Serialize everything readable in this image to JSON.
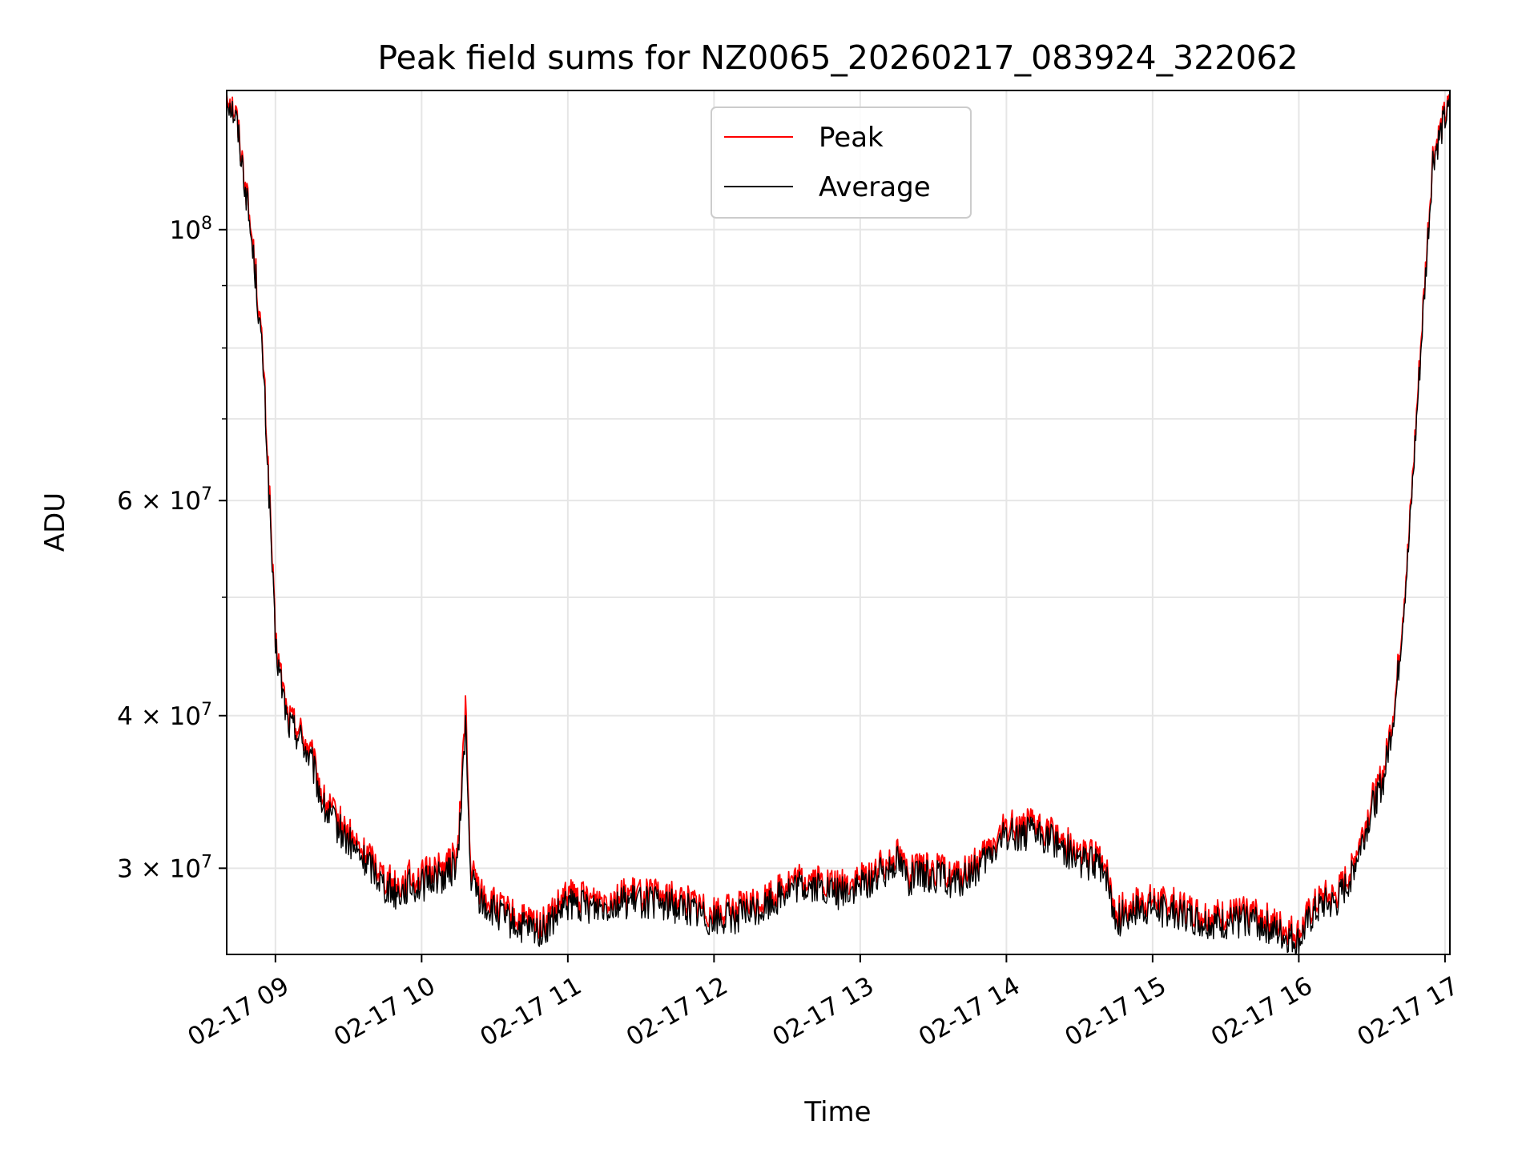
{
  "chart_data": {
    "type": "line",
    "title": "Peak field sums for NZ0065_20260217_083924_322062",
    "xlabel": "Time",
    "ylabel": "ADU",
    "yscale": "log",
    "ylim": [
      25500000,
      130000000
    ],
    "xlim": [
      "2026-02-17 08:40",
      "2026-02-17 17:02"
    ],
    "x_ticks": [
      {
        "value": "2026-02-17 09:00",
        "label": "02-17 09"
      },
      {
        "value": "2026-02-17 10:00",
        "label": "02-17 10"
      },
      {
        "value": "2026-02-17 11:00",
        "label": "02-17 11"
      },
      {
        "value": "2026-02-17 12:00",
        "label": "02-17 12"
      },
      {
        "value": "2026-02-17 13:00",
        "label": "02-17 13"
      },
      {
        "value": "2026-02-17 14:00",
        "label": "02-17 14"
      },
      {
        "value": "2026-02-17 15:00",
        "label": "02-17 15"
      },
      {
        "value": "2026-02-17 16:00",
        "label": "02-17 16"
      },
      {
        "value": "2026-02-17 17:00",
        "label": "02-17 17"
      }
    ],
    "y_ticks": [
      {
        "value": 30000000,
        "mantissa": "3",
        "exponent": "7"
      },
      {
        "value": 40000000,
        "mantissa": "4",
        "exponent": "7"
      },
      {
        "value": 60000000,
        "mantissa": "6",
        "exponent": "7"
      },
      {
        "value": 100000000,
        "mantissa": "",
        "exponent": "8"
      }
    ],
    "y_minor_ticks": [
      50000000,
      70000000,
      80000000,
      90000000
    ],
    "grid": true,
    "legend_position": "top-center",
    "series": [
      {
        "name": "Peak",
        "color": "#ff0000",
        "x": [
          "2026-02-17 08:40",
          "2026-02-17 08:44",
          "2026-02-17 08:48",
          "2026-02-17 08:52",
          "2026-02-17 08:55",
          "2026-02-17 08:58",
          "2026-02-17 09:00",
          "2026-02-17 09:05",
          "2026-02-17 09:10",
          "2026-02-17 09:15",
          "2026-02-17 09:20",
          "2026-02-17 09:25",
          "2026-02-17 09:30",
          "2026-02-17 09:35",
          "2026-02-17 09:40",
          "2026-02-17 09:45",
          "2026-02-17 09:50",
          "2026-02-17 09:55",
          "2026-02-17 10:00",
          "2026-02-17 10:05",
          "2026-02-17 10:10",
          "2026-02-17 10:15",
          "2026-02-17 10:18",
          "2026-02-17 10:20",
          "2026-02-17 10:25",
          "2026-02-17 10:30",
          "2026-02-17 10:40",
          "2026-02-17 10:50",
          "2026-02-17 11:00",
          "2026-02-17 11:10",
          "2026-02-17 11:20",
          "2026-02-17 11:30",
          "2026-02-17 11:40",
          "2026-02-17 11:50",
          "2026-02-17 12:00",
          "2026-02-17 12:10",
          "2026-02-17 12:20",
          "2026-02-17 12:30",
          "2026-02-17 12:40",
          "2026-02-17 12:50",
          "2026-02-17 13:00",
          "2026-02-17 13:10",
          "2026-02-17 13:15",
          "2026-02-17 13:20",
          "2026-02-17 13:30",
          "2026-02-17 13:40",
          "2026-02-17 13:50",
          "2026-02-17 14:00",
          "2026-02-17 14:10",
          "2026-02-17 14:20",
          "2026-02-17 14:30",
          "2026-02-17 14:40",
          "2026-02-17 14:45",
          "2026-02-17 14:50",
          "2026-02-17 15:00",
          "2026-02-17 15:10",
          "2026-02-17 15:20",
          "2026-02-17 15:30",
          "2026-02-17 15:40",
          "2026-02-17 15:50",
          "2026-02-17 16:00",
          "2026-02-17 16:05",
          "2026-02-17 16:10",
          "2026-02-17 16:15",
          "2026-02-17 16:20",
          "2026-02-17 16:25",
          "2026-02-17 16:30",
          "2026-02-17 16:35",
          "2026-02-17 16:40",
          "2026-02-17 16:45",
          "2026-02-17 16:50",
          "2026-02-17 16:55",
          "2026-02-17 17:00",
          "2026-02-17 17:02"
        ],
        "values": [
          130000000,
          124000000,
          108000000,
          92000000,
          78000000,
          58000000,
          46000000,
          40000000,
          39000000,
          37000000,
          34000000,
          33000000,
          32000000,
          31000000,
          30500000,
          29500000,
          29000000,
          29500000,
          29500000,
          30000000,
          30000000,
          31000000,
          41000000,
          30000000,
          28500000,
          28000000,
          27200000,
          27000000,
          28500000,
          28300000,
          28500000,
          28600000,
          28400000,
          28200000,
          27600000,
          27800000,
          28200000,
          29200000,
          29400000,
          29000000,
          29300000,
          30200000,
          31000000,
          29800000,
          30000000,
          29500000,
          30500000,
          32500000,
          32500000,
          32000000,
          30800000,
          30500000,
          27500000,
          28000000,
          28200000,
          28000000,
          27500000,
          27400000,
          27700000,
          27000000,
          26500000,
          27700000,
          28400000,
          28400000,
          29500000,
          31500000,
          34000000,
          36000000,
          42000000,
          55000000,
          80000000,
          115000000,
          124000000,
          126000000
        ]
      },
      {
        "name": "Average",
        "color": "#000000",
        "x": [
          "2026-02-17 08:40",
          "2026-02-17 08:44",
          "2026-02-17 08:48",
          "2026-02-17 08:52",
          "2026-02-17 08:55",
          "2026-02-17 08:58",
          "2026-02-17 09:00",
          "2026-02-17 09:05",
          "2026-02-17 09:10",
          "2026-02-17 09:15",
          "2026-02-17 09:20",
          "2026-02-17 09:25",
          "2026-02-17 09:30",
          "2026-02-17 09:35",
          "2026-02-17 09:40",
          "2026-02-17 09:45",
          "2026-02-17 09:50",
          "2026-02-17 09:55",
          "2026-02-17 10:00",
          "2026-02-17 10:05",
          "2026-02-17 10:10",
          "2026-02-17 10:15",
          "2026-02-17 10:18",
          "2026-02-17 10:20",
          "2026-02-17 10:25",
          "2026-02-17 10:30",
          "2026-02-17 10:40",
          "2026-02-17 10:50",
          "2026-02-17 11:00",
          "2026-02-17 11:10",
          "2026-02-17 11:20",
          "2026-02-17 11:30",
          "2026-02-17 11:40",
          "2026-02-17 11:50",
          "2026-02-17 12:00",
          "2026-02-17 12:10",
          "2026-02-17 12:20",
          "2026-02-17 12:30",
          "2026-02-17 12:40",
          "2026-02-17 12:50",
          "2026-02-17 13:00",
          "2026-02-17 13:10",
          "2026-02-17 13:15",
          "2026-02-17 13:20",
          "2026-02-17 13:30",
          "2026-02-17 13:40",
          "2026-02-17 13:50",
          "2026-02-17 14:00",
          "2026-02-17 14:10",
          "2026-02-17 14:20",
          "2026-02-17 14:30",
          "2026-02-17 14:40",
          "2026-02-17 14:45",
          "2026-02-17 14:50",
          "2026-02-17 15:00",
          "2026-02-17 15:10",
          "2026-02-17 15:20",
          "2026-02-17 15:30",
          "2026-02-17 15:40",
          "2026-02-17 15:50",
          "2026-02-17 16:00",
          "2026-02-17 16:05",
          "2026-02-17 16:10",
          "2026-02-17 16:15",
          "2026-02-17 16:20",
          "2026-02-17 16:25",
          "2026-02-17 16:30",
          "2026-02-17 16:35",
          "2026-02-17 16:40",
          "2026-02-17 16:45",
          "2026-02-17 16:50",
          "2026-02-17 16:55",
          "2026-02-17 17:00",
          "2026-02-17 17:02"
        ],
        "values": [
          129000000,
          123000000,
          107000000,
          91000000,
          77000000,
          57000000,
          45500000,
          39500000,
          38500000,
          36500000,
          33500000,
          32500000,
          31500000,
          30600000,
          30000000,
          29000000,
          28600000,
          29000000,
          29000000,
          29500000,
          29500000,
          30500000,
          39500000,
          29500000,
          28000000,
          27600000,
          26800000,
          26600000,
          28000000,
          27900000,
          28100000,
          28200000,
          28000000,
          27800000,
          27200000,
          27400000,
          27800000,
          28800000,
          29000000,
          28600000,
          28900000,
          29800000,
          30600000,
          29400000,
          29600000,
          29100000,
          30100000,
          32000000,
          32000000,
          31600000,
          30400000,
          30100000,
          27100000,
          27600000,
          27800000,
          27600000,
          27100000,
          27000000,
          27300000,
          26600000,
          26100000,
          27300000,
          28000000,
          28000000,
          29100000,
          31100000,
          33500000,
          35500000,
          41500000,
          54500000,
          79000000,
          114000000,
          123000000,
          125000000
        ]
      }
    ]
  }
}
